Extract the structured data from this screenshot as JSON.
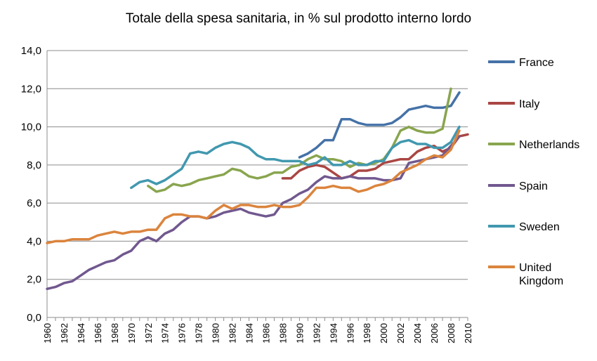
{
  "chart_data": {
    "type": "line",
    "title": "Totale della spesa sanitaria, in % sul prodotto interno lordo",
    "xlabel": "",
    "ylabel": "",
    "ylim": [
      0,
      14
    ],
    "yticks": [
      "0,0",
      "2,0",
      "4,0",
      "6,0",
      "8,0",
      "10,0",
      "12,0",
      "14,0"
    ],
    "xlim": [
      1960,
      2010
    ],
    "xticks": [
      "1960",
      "1962",
      "1964",
      "1966",
      "1968",
      "1970",
      "1972",
      "1974",
      "1976",
      "1978",
      "1980",
      "1982",
      "1984",
      "1986",
      "1988",
      "1990",
      "1992",
      "1994",
      "1996",
      "1998",
      "2000",
      "2002",
      "2004",
      "2006",
      "2008",
      "2010"
    ],
    "grid": true,
    "legend_position": "right",
    "series": [
      {
        "name": "France",
        "color": "#4572A7",
        "start": 1990,
        "values": [
          8.4,
          8.6,
          8.9,
          9.3,
          9.3,
          10.4,
          10.4,
          10.2,
          10.1,
          10.1,
          10.1,
          10.2,
          10.5,
          10.9,
          11.0,
          11.1,
          11.0,
          11.0,
          11.1,
          11.8
        ]
      },
      {
        "name": "Italy",
        "color": "#AA4643",
        "start": 1988,
        "legend": [
          "Italy"
        ],
        "values": [
          7.3,
          7.3,
          7.7,
          7.9,
          8.0,
          7.9,
          7.6,
          7.3,
          7.4,
          7.7,
          7.7,
          7.8,
          8.1,
          8.2,
          8.3,
          8.3,
          8.7,
          8.9,
          9.0,
          8.7,
          8.9,
          9.5,
          9.6
        ]
      },
      {
        "name": "Netherlands",
        "color": "#89A54E",
        "start": 1972,
        "values": [
          6.9,
          6.6,
          6.7,
          7.0,
          6.9,
          7.0,
          7.2,
          7.3,
          7.4,
          7.5,
          7.8,
          7.7,
          7.4,
          7.3,
          7.4,
          7.6,
          7.6,
          7.9,
          8.0,
          8.3,
          8.5,
          8.3,
          8.3,
          8.2,
          7.9,
          8.1,
          8.0,
          8.1,
          8.3,
          8.9,
          9.8,
          10.0,
          9.8,
          9.7,
          9.7,
          9.9,
          12.0
        ]
      },
      {
        "name": "Spain",
        "color": "#71588F",
        "start": 1960,
        "values": [
          1.5,
          1.6,
          1.8,
          1.9,
          2.2,
          2.5,
          2.7,
          2.9,
          3.0,
          3.3,
          3.5,
          4.0,
          4.2,
          4.0,
          4.4,
          4.6,
          5.0,
          5.3,
          5.3,
          5.2,
          5.3,
          5.5,
          5.6,
          5.7,
          5.5,
          5.4,
          5.3,
          5.4,
          6.0,
          6.2,
          6.5,
          6.7,
          7.1,
          7.4,
          7.3,
          7.3,
          7.4,
          7.3,
          7.3,
          7.3,
          7.2,
          7.2,
          7.3,
          8.1,
          8.2,
          8.3,
          8.4,
          8.5,
          9.0,
          9.5
        ]
      },
      {
        "name": "Sweden",
        "color": "#4198AF",
        "start": 1970,
        "values": [
          6.8,
          7.1,
          7.2,
          7.0,
          7.2,
          7.5,
          7.8,
          8.6,
          8.7,
          8.6,
          8.9,
          9.1,
          9.2,
          9.1,
          8.9,
          8.5,
          8.3,
          8.3,
          8.2,
          8.2,
          8.2,
          8.0,
          8.1,
          8.4,
          8.0,
          8.0,
          8.2,
          8.0,
          8.0,
          8.2,
          8.2,
          8.9,
          9.2,
          9.3,
          9.1,
          9.1,
          8.9,
          8.9,
          9.2,
          10.0
        ]
      },
      {
        "name": "United Kingdom",
        "color": "#DB843D",
        "start": 1960,
        "legend": [
          "United",
          "Kingdom"
        ],
        "values": [
          3.9,
          4.0,
          4.0,
          4.1,
          4.1,
          4.1,
          4.3,
          4.4,
          4.5,
          4.4,
          4.5,
          4.5,
          4.6,
          4.6,
          5.2,
          5.4,
          5.4,
          5.3,
          5.3,
          5.2,
          5.6,
          5.9,
          5.7,
          5.9,
          5.9,
          5.8,
          5.8,
          5.9,
          5.8,
          5.8,
          5.9,
          6.3,
          6.8,
          6.8,
          6.9,
          6.8,
          6.8,
          6.6,
          6.7,
          6.9,
          7.0,
          7.2,
          7.6,
          7.8,
          8.0,
          8.3,
          8.5,
          8.4,
          8.8,
          9.8
        ]
      }
    ]
  }
}
